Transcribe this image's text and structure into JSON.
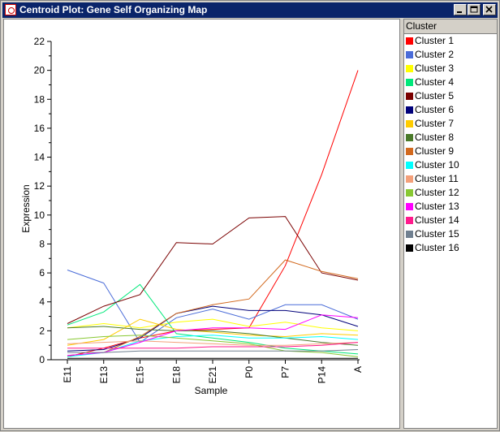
{
  "window": {
    "title": "Centroid Plot: Gene Self Organizing Map"
  },
  "titlebar_buttons": [
    "minimize",
    "maximize",
    "close"
  ],
  "legend": {
    "header": "Cluster",
    "items": [
      {
        "label": "Cluster 1",
        "color": "#ff0000"
      },
      {
        "label": "Cluster 2",
        "color": "#4a6cd8"
      },
      {
        "label": "Cluster 3",
        "color": "#ffff00"
      },
      {
        "label": "Cluster 4",
        "color": "#00e87a"
      },
      {
        "label": "Cluster 5",
        "color": "#7a0000"
      },
      {
        "label": "Cluster 6",
        "color": "#00007a"
      },
      {
        "label": "Cluster 7",
        "color": "#ffcc00"
      },
      {
        "label": "Cluster 8",
        "color": "#4a7a2a"
      },
      {
        "label": "Cluster 9",
        "color": "#d2691e"
      },
      {
        "label": "Cluster 10",
        "color": "#00ffff"
      },
      {
        "label": "Cluster 11",
        "color": "#f4a07a"
      },
      {
        "label": "Cluster 12",
        "color": "#88c832"
      },
      {
        "label": "Cluster 13",
        "color": "#ff00ff"
      },
      {
        "label": "Cluster 14",
        "color": "#ff1a8c"
      },
      {
        "label": "Cluster 15",
        "color": "#708090"
      },
      {
        "label": "Cluster 16",
        "color": "#000000"
      }
    ]
  },
  "chart_data": {
    "type": "line",
    "xlabel": "Sample",
    "ylabel": "Expression",
    "ylim": [
      0,
      22
    ],
    "yticks": [
      0,
      2,
      4,
      6,
      8,
      10,
      12,
      14,
      16,
      18,
      20,
      22
    ],
    "x": [
      "E11",
      "E13",
      "E15",
      "E18",
      "E21",
      "P0",
      "P7",
      "P14",
      "A"
    ],
    "grid": false,
    "legend_position": "right panel",
    "series": [
      {
        "name": "Cluster 1",
        "color": "#ff0000",
        "values": [
          0.2,
          0.8,
          1.5,
          2.0,
          2.1,
          2.2,
          6.5,
          12.8,
          20.0
        ]
      },
      {
        "name": "Cluster 2",
        "color": "#4a6cd8",
        "values": [
          6.2,
          5.3,
          1.2,
          2.9,
          3.5,
          2.8,
          3.8,
          3.8,
          2.8
        ]
      },
      {
        "name": "Cluster 3",
        "color": "#ffff00",
        "values": [
          2.2,
          2.5,
          2.2,
          2.6,
          2.8,
          2.3,
          2.6,
          2.2,
          2.0
        ]
      },
      {
        "name": "Cluster 4",
        "color": "#00e87a",
        "values": [
          2.4,
          3.3,
          5.2,
          1.8,
          1.5,
          1.2,
          0.8,
          0.6,
          0.4
        ]
      },
      {
        "name": "Cluster 5",
        "color": "#7a0000",
        "values": [
          2.5,
          3.7,
          4.5,
          8.1,
          8.0,
          9.8,
          9.9,
          6.0,
          5.5
        ]
      },
      {
        "name": "Cluster 6",
        "color": "#00007a",
        "values": [
          0.6,
          0.7,
          1.5,
          3.2,
          3.7,
          3.4,
          3.4,
          3.1,
          2.3
        ]
      },
      {
        "name": "Cluster 7",
        "color": "#ffcc00",
        "values": [
          1.0,
          1.4,
          2.8,
          2.1,
          1.9,
          1.7,
          1.6,
          1.8,
          1.7
        ]
      },
      {
        "name": "Cluster 8",
        "color": "#4a7a2a",
        "values": [
          2.2,
          2.3,
          2.1,
          2.0,
          2.0,
          1.8,
          1.5,
          1.2,
          1.0
        ]
      },
      {
        "name": "Cluster 9",
        "color": "#d2691e",
        "values": [
          0.3,
          0.5,
          1.6,
          3.2,
          3.8,
          4.2,
          6.9,
          6.1,
          5.6
        ]
      },
      {
        "name": "Cluster 10",
        "color": "#00ffff",
        "values": [
          0.2,
          0.5,
          1.3,
          1.6,
          1.7,
          1.5,
          1.5,
          1.6,
          1.4
        ]
      },
      {
        "name": "Cluster 11",
        "color": "#f4a07a",
        "values": [
          1.1,
          1.2,
          1.3,
          1.2,
          1.1,
          1.0,
          1.0,
          1.1,
          1.2
        ]
      },
      {
        "name": "Cluster 12",
        "color": "#88c832",
        "values": [
          1.4,
          1.6,
          1.7,
          1.5,
          1.3,
          1.1,
          0.6,
          0.5,
          0.2
        ]
      },
      {
        "name": "Cluster 13",
        "color": "#ff00ff",
        "values": [
          0.3,
          0.5,
          1.2,
          2.0,
          2.2,
          2.2,
          2.1,
          3.1,
          2.9
        ]
      },
      {
        "name": "Cluster 14",
        "color": "#ff1a8c",
        "values": [
          0.8,
          0.8,
          0.8,
          0.8,
          0.9,
          0.9,
          0.9,
          1.0,
          1.2
        ]
      },
      {
        "name": "Cluster 15",
        "color": "#708090",
        "values": [
          0.5,
          0.5,
          0.6,
          0.6,
          0.6,
          0.6,
          0.6,
          0.6,
          0.7
        ]
      },
      {
        "name": "Cluster 16",
        "color": "#000000",
        "values": [
          0.1,
          0.1,
          0.1,
          0.1,
          0.1,
          0.1,
          0.1,
          0.1,
          0.1
        ]
      }
    ]
  }
}
